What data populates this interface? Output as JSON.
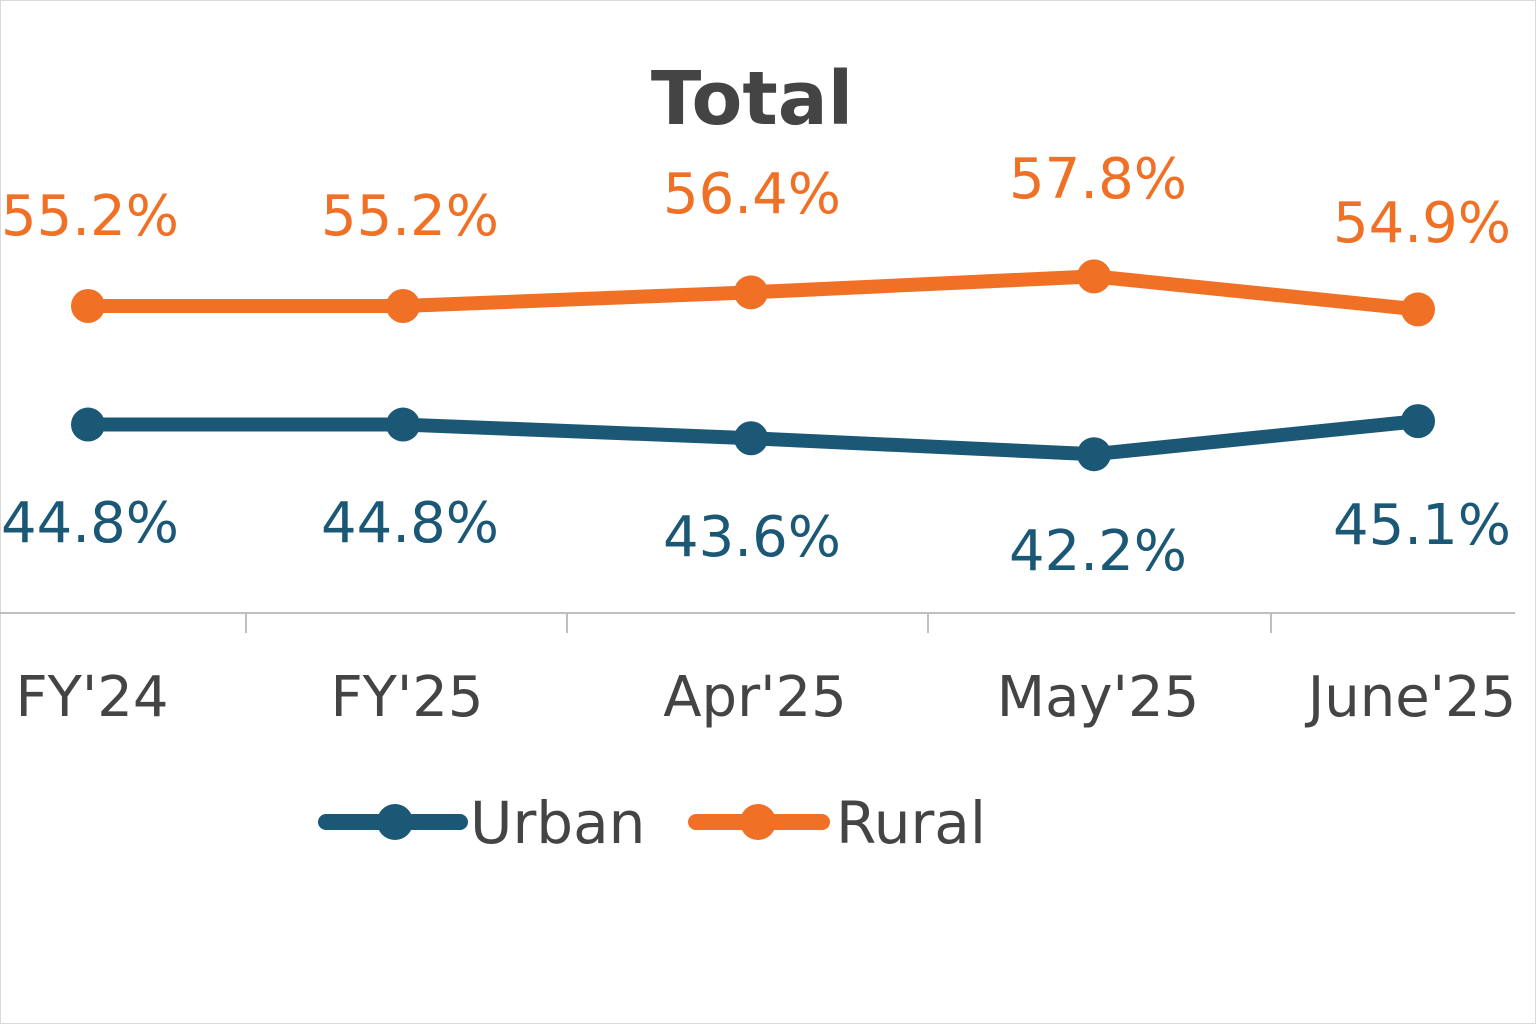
{
  "chart_data": {
    "type": "line",
    "title": "Total",
    "categories": [
      "FY'24",
      "FY'25",
      "Apr'25",
      "May'25",
      "June'25"
    ],
    "series": [
      {
        "name": "Urban",
        "values": [
          44.8,
          44.8,
          43.6,
          42.2,
          45.1
        ],
        "labels": [
          "44.8%",
          "44.8%",
          "43.6%",
          "42.2%",
          "45.1%"
        ],
        "color": "#1a5876"
      },
      {
        "name": "Rural",
        "values": [
          55.2,
          55.2,
          56.4,
          57.8,
          54.9
        ],
        "labels": [
          "55.2%",
          "55.2%",
          "56.4%",
          "57.8%",
          "54.9%"
        ],
        "color": "#f07026"
      }
    ],
    "xlabel": "",
    "ylabel": "",
    "grid": false,
    "legend": "bottom-center",
    "colors": {
      "text": "#444444",
      "axis": "#bfbfbf",
      "border": "#d9d9d9"
    }
  }
}
